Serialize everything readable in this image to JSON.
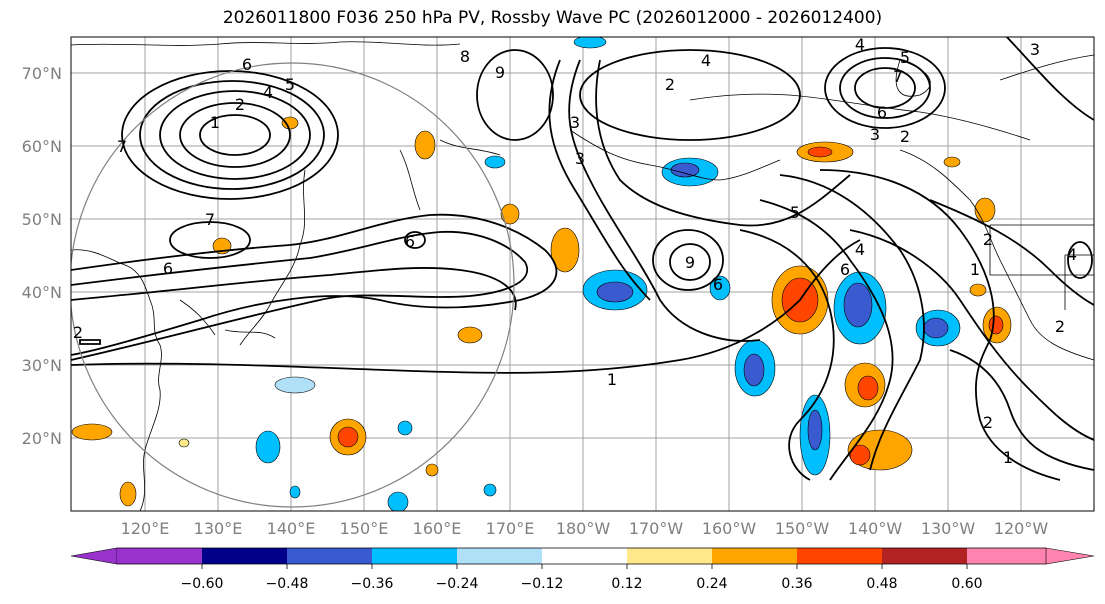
{
  "title": "2026011800 F036 250 hPa PV, Rossby Wave PC (2026012000 - 2026012400)",
  "map": {
    "lat_labels": [
      "70°N",
      "60°N",
      "50°N",
      "40°N",
      "30°N",
      "20°N"
    ],
    "lon_labels": [
      "120°E",
      "130°E",
      "140°E",
      "150°E",
      "160°E",
      "170°E",
      "180°W",
      "170°W",
      "160°W",
      "150°W",
      "140°W",
      "130°W",
      "120°W"
    ],
    "contour_labels": [
      "6",
      "5",
      "4",
      "2",
      "1",
      "7",
      "7",
      "6",
      "2",
      "8",
      "9",
      "6",
      "4",
      "3",
      "3",
      "2",
      "4",
      "5",
      "7",
      "6",
      "3",
      "2",
      "5",
      "4",
      "6",
      "9",
      "6",
      "1",
      "1",
      "2",
      "2",
      "1",
      "4",
      "3",
      "2"
    ],
    "colors": {
      "land_outline": "#000000",
      "grid": "#a0a0a0",
      "contour": "#000000",
      "circle": "#808080"
    }
  },
  "colorbar": {
    "tick_labels": [
      "−0.60",
      "−0.48",
      "−0.36",
      "−0.24",
      "−0.12",
      "0.12",
      "0.24",
      "0.36",
      "0.48",
      "0.60"
    ],
    "colors": [
      "#9932cc",
      "#00008b",
      "#3a5bcf",
      "#00bfff",
      "#b0e0f8",
      "#ffffff",
      "#ffe88a",
      "#ffa500",
      "#ff4500",
      "#b22222",
      "#ff85b0"
    ]
  }
}
